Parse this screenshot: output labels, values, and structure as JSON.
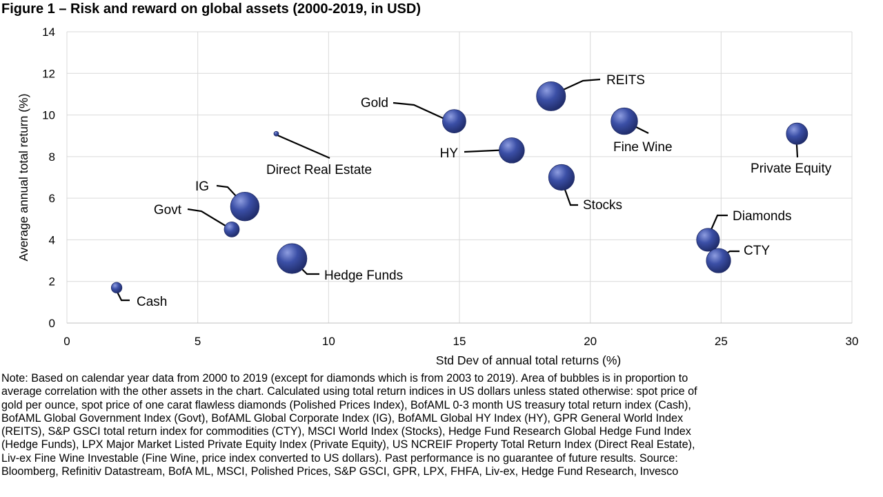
{
  "title": "Figure 1 – Risk and reward on global assets (2000-2019, in USD)",
  "note": "Note: Based on calendar year data from 2000 to 2019 (except for diamonds which is from 2003 to 2019). Area of bubbles is in proportion to\naverage correlation with the other assets in the chart. Calculated using total return indices in US dollars unless stated otherwise: spot price of\ngold per ounce, spot price of one carat flawless diamonds (Polished Prices Index), BofAML 0-3 month US treasury total return index (Cash),\nBofAML Global Government Index (Govt), BofAML Global Corporate Index (IG), BofAML Global HY Index (HY), GPR General World Index\n(REITS), S&P GSCI total return index for commodities (CTY), MSCI World Index (Stocks), Hedge Fund Research Global Hedge Fund Index\n(Hedge Funds), LPX Major Market Listed Private Equity Index (Private Equity), US NCREIF Property Total Return Index (Direct Real Estate),\nLiv-ex Fine Wine Investable (Fine Wine, price index converted to US dollars). Past performance is no guarantee of future results. Source:\nBloomberg, Refinitiv Datastream, BofA ML, MSCI, Polished Prices, S&P GSCI, GPR, LPX, FHFA, Liv-ex, Hedge Fund Research, Invesco",
  "colors": {
    "bubble": "#3b4fa6",
    "bubble_highlight": "#8e9de0",
    "bubble_shadow": "#1e2a66",
    "grid": "#d9d9d9",
    "axis": "#bfbfbf"
  },
  "chart_data": {
    "type": "scatter",
    "xlabel": "Std Dev of annual total returns (%)",
    "ylabel": "Average annual total return (%)",
    "xlim": [
      0,
      30
    ],
    "ylim": [
      0,
      14
    ],
    "x_ticks": [
      "0",
      "5",
      "10",
      "15",
      "20",
      "25",
      "30"
    ],
    "y_ticks": [
      "0",
      "2",
      "4",
      "6",
      "8",
      "10",
      "12",
      "14"
    ],
    "grid": true,
    "bubble_size_meaning": "relative average correlation (bubble area)",
    "points": [
      {
        "label": "Cash",
        "x": 1.9,
        "y": 1.7,
        "size": 0.25
      },
      {
        "label": "Govt",
        "x": 6.3,
        "y": 4.5,
        "size": 0.5
      },
      {
        "label": "IG",
        "x": 6.8,
        "y": 5.6,
        "size": 1.8
      },
      {
        "label": "Hedge Funds",
        "x": 8.6,
        "y": 3.1,
        "size": 1.95
      },
      {
        "label": "Direct Real Estate",
        "x": 8.0,
        "y": 9.1,
        "size": 0.05
      },
      {
        "label": "Gold",
        "x": 14.8,
        "y": 9.7,
        "size": 1.2
      },
      {
        "label": "HY",
        "x": 17.0,
        "y": 8.3,
        "size": 1.4
      },
      {
        "label": "REITS",
        "x": 18.5,
        "y": 10.9,
        "size": 1.85
      },
      {
        "label": "Stocks",
        "x": 18.9,
        "y": 7.0,
        "size": 1.45
      },
      {
        "label": "Fine Wine",
        "x": 21.3,
        "y": 9.7,
        "size": 1.55
      },
      {
        "label": "Private Equity",
        "x": 27.9,
        "y": 9.1,
        "size": 1.0
      },
      {
        "label": "Diamonds",
        "x": 24.5,
        "y": 4.0,
        "size": 1.15
      },
      {
        "label": "CTY",
        "x": 24.9,
        "y": 3.0,
        "size": 1.3
      }
    ]
  }
}
